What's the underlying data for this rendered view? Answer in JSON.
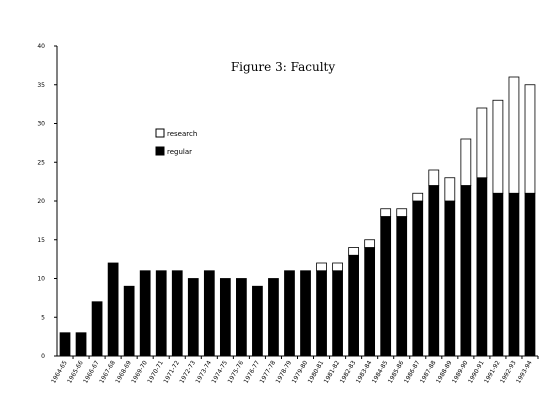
{
  "chart_data": {
    "type": "bar",
    "stacked": true,
    "title": "Figure 3:  Faculty",
    "xlabel": "",
    "ylabel": "",
    "ylim": [
      0,
      40
    ],
    "yticks": [
      0,
      5,
      10,
      15,
      20,
      25,
      30,
      35,
      40
    ],
    "grid": false,
    "legend_position": "upper-left",
    "categories": [
      "1964-65",
      "1965-66",
      "1966-67",
      "1967-68",
      "1968-69",
      "1969-70",
      "1970-71",
      "1971-72",
      "1972-73",
      "1973-74",
      "1974-75",
      "1975-76",
      "1976-77",
      "1977-78",
      "1978-79",
      "1979-80",
      "1980-81",
      "1981-82",
      "1982-83",
      "1983-84",
      "1984-85",
      "1985-86",
      "1986-87",
      "1987-88",
      "1988-89",
      "1989-90",
      "1990-91",
      "1991-92",
      "1992-93",
      "1993-94"
    ],
    "series": [
      {
        "name": "regular",
        "color": "#000000",
        "values": [
          3,
          3,
          7,
          12,
          9,
          11,
          11,
          11,
          10,
          11,
          10,
          10,
          9,
          10,
          11,
          11,
          11,
          11,
          13,
          14,
          18,
          18,
          20,
          22,
          20,
          22,
          23,
          21,
          21,
          21
        ]
      },
      {
        "name": "research",
        "color": "#ffffff",
        "values": [
          0,
          0,
          0,
          0,
          0,
          0,
          0,
          0,
          0,
          0,
          0,
          0,
          0,
          0,
          0,
          0,
          1,
          1,
          1,
          1,
          1,
          1,
          1,
          2,
          3,
          6,
          9,
          12,
          15,
          14
        ]
      }
    ]
  }
}
